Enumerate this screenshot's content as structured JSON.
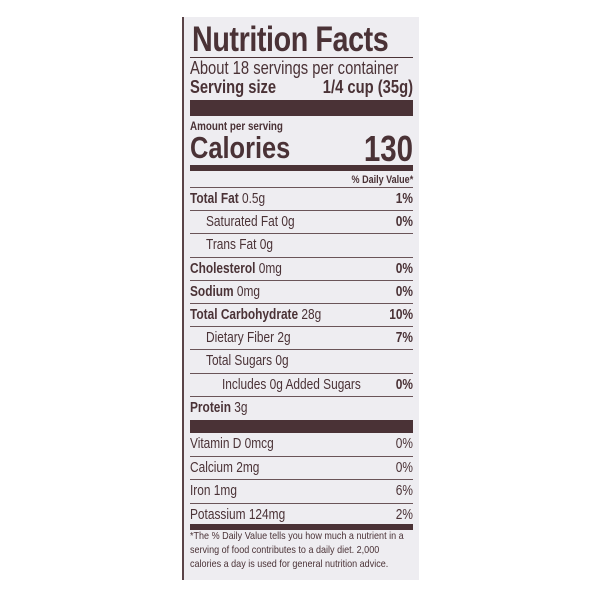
{
  "label": {
    "title": "Nutrition Facts",
    "servings_per_container": "About 18 servings per container",
    "serving_size_label": "Serving size",
    "serving_size_value": "1/4 cup (35g)",
    "amount_per_serving": "Amount per serving",
    "calories_label": "Calories",
    "calories_value": "130",
    "daily_value_header": "% Daily Value*",
    "nutrients": [
      {
        "name": "Total Fat",
        "amount": "0.5g",
        "dv": "1%",
        "indent": 0,
        "bold": true
      },
      {
        "name": "Saturated Fat",
        "amount": "0g",
        "dv": "0%",
        "indent": 1,
        "bold": false
      },
      {
        "name": "Trans Fat",
        "amount": "0g",
        "dv": "",
        "indent": 1,
        "bold": false
      },
      {
        "name": "Cholesterol",
        "amount": "0mg",
        "dv": "0%",
        "indent": 0,
        "bold": true
      },
      {
        "name": "Sodium",
        "amount": "0mg",
        "dv": "0%",
        "indent": 0,
        "bold": true
      },
      {
        "name": "Total Carbohydrate",
        "amount": "28g",
        "dv": "10%",
        "indent": 0,
        "bold": true
      },
      {
        "name": "Dietary Fiber",
        "amount": "2g",
        "dv": "7%",
        "indent": 1,
        "bold": false
      },
      {
        "name": "Total Sugars",
        "amount": "0g",
        "dv": "",
        "indent": 1,
        "bold": false
      },
      {
        "name": "Includes 0g Added Sugars",
        "amount": "",
        "dv": "0%",
        "indent": 2,
        "bold": false
      },
      {
        "name": "Protein",
        "amount": "3g",
        "dv": "",
        "indent": 0,
        "bold": true
      }
    ],
    "vitamins": [
      {
        "name": "Vitamin D",
        "amount": "0mcg",
        "dv": "0%"
      },
      {
        "name": "Calcium",
        "amount": "2mg",
        "dv": "0%"
      },
      {
        "name": "Iron",
        "amount": "1mg",
        "dv": "6%"
      },
      {
        "name": "Potassium",
        "amount": "124mg",
        "dv": "2%"
      }
    ],
    "footnote": "*The % Daily Value tells you how much a nutrient in a serving of food contributes to a daily diet. 2,000 calories a day is used for general nutrition advice."
  },
  "colors": {
    "ink": "#4a3236",
    "background": "#eeedf1"
  }
}
